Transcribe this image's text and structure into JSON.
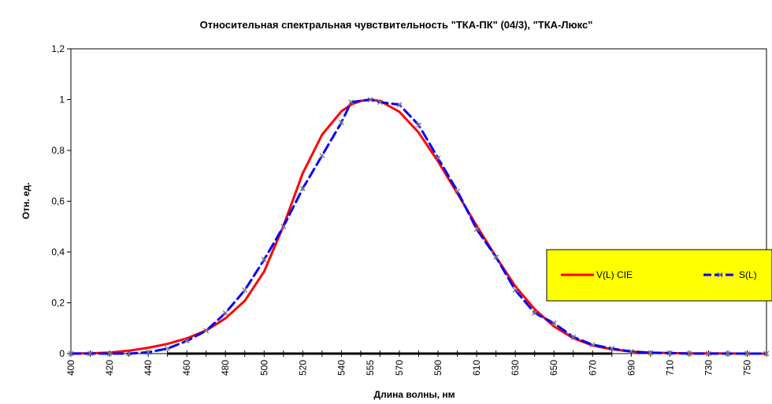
{
  "chart_data": {
    "type": "line",
    "title": "Относительная спектральная чувствительность \"ТКА-ПК\" (04/3), \"ТКА-Люкс\"",
    "xlabel": "Длина волны, нм",
    "ylabel": "Отн. ед.",
    "xlim": [
      400,
      760
    ],
    "ylim": [
      0,
      1.2
    ],
    "x_ticks": [
      "400",
      "420",
      "440",
      "460",
      "480",
      "500",
      "520",
      "540",
      "555",
      "570",
      "590",
      "610",
      "630",
      "650",
      "670",
      "690",
      "710",
      "730",
      "750"
    ],
    "y_ticks": [
      "0",
      "0,2",
      "0,4",
      "0,6",
      "0,8",
      "1",
      "1,2"
    ],
    "grid": false,
    "legend_position": "right",
    "legend_background": "#ffff00",
    "series": [
      {
        "name": "V(L)  CIE",
        "color": "#ff0000",
        "line_style": "solid",
        "marker": "none",
        "points": [
          [
            400,
            0.0004
          ],
          [
            410,
            0.0012
          ],
          [
            420,
            0.004
          ],
          [
            430,
            0.0116
          ],
          [
            440,
            0.023
          ],
          [
            450,
            0.038
          ],
          [
            460,
            0.06
          ],
          [
            470,
            0.091
          ],
          [
            480,
            0.139
          ],
          [
            490,
            0.208
          ],
          [
            500,
            0.323
          ],
          [
            510,
            0.503
          ],
          [
            520,
            0.71
          ],
          [
            530,
            0.862
          ],
          [
            540,
            0.954
          ],
          [
            545,
            0.98
          ],
          [
            550,
            0.995
          ],
          [
            555,
            1.0
          ],
          [
            560,
            0.995
          ],
          [
            570,
            0.952
          ],
          [
            580,
            0.87
          ],
          [
            590,
            0.757
          ],
          [
            600,
            0.631
          ],
          [
            610,
            0.503
          ],
          [
            620,
            0.381
          ],
          [
            630,
            0.265
          ],
          [
            640,
            0.175
          ],
          [
            650,
            0.107
          ],
          [
            660,
            0.061
          ],
          [
            670,
            0.032
          ],
          [
            680,
            0.017
          ],
          [
            690,
            0.0082
          ],
          [
            700,
            0.0041
          ],
          [
            710,
            0.0021
          ],
          [
            720,
            0.00105
          ],
          [
            730,
            0.00052
          ],
          [
            740,
            0.00025
          ],
          [
            750,
            0.00012
          ],
          [
            760,
            6e-05
          ]
        ]
      },
      {
        "name": "S(L)",
        "color": "#0000ff",
        "line_style": "dashed",
        "marker": "x",
        "points": [
          [
            400,
            0.0
          ],
          [
            410,
            0.0
          ],
          [
            420,
            0.0
          ],
          [
            430,
            0.0
          ],
          [
            440,
            0.005
          ],
          [
            450,
            0.02
          ],
          [
            460,
            0.05
          ],
          [
            470,
            0.09
          ],
          [
            480,
            0.16
          ],
          [
            490,
            0.25
          ],
          [
            500,
            0.37
          ],
          [
            510,
            0.5
          ],
          [
            520,
            0.65
          ],
          [
            530,
            0.78
          ],
          [
            540,
            0.91
          ],
          [
            545,
            0.99
          ],
          [
            555,
            1.0
          ],
          [
            560,
            0.99
          ],
          [
            570,
            0.98
          ],
          [
            580,
            0.9
          ],
          [
            590,
            0.77
          ],
          [
            600,
            0.64
          ],
          [
            610,
            0.49
          ],
          [
            620,
            0.38
          ],
          [
            630,
            0.25
          ],
          [
            640,
            0.16
          ],
          [
            650,
            0.12
          ],
          [
            660,
            0.065
          ],
          [
            670,
            0.035
          ],
          [
            680,
            0.02
          ],
          [
            690,
            0.008
          ],
          [
            700,
            0.003
          ],
          [
            710,
            0.002
          ],
          [
            720,
            0.0
          ],
          [
            730,
            0.0
          ],
          [
            740,
            0.0
          ],
          [
            750,
            0.0
          ],
          [
            760,
            0.0
          ]
        ]
      }
    ]
  }
}
